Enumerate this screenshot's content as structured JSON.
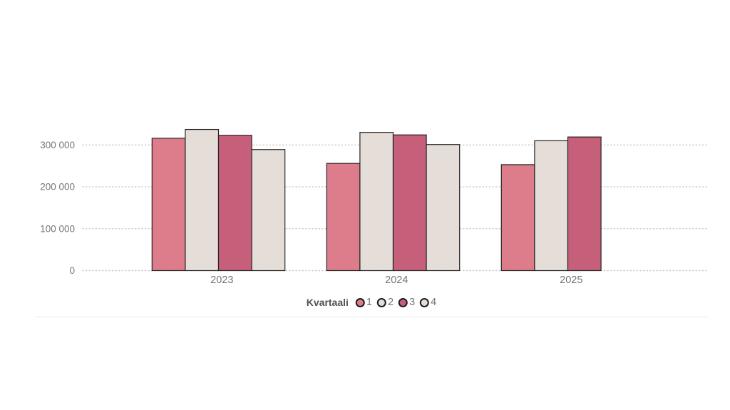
{
  "chart_data": {
    "type": "bar",
    "title": "",
    "xlabel": "",
    "ylabel": "",
    "categories": [
      "2023",
      "2024",
      "2025"
    ],
    "series": [
      {
        "name": "1",
        "color": "#dd7c8a",
        "values": [
          316000,
          256000,
          253000
        ]
      },
      {
        "name": "2",
        "color": "#e5ded8",
        "values": [
          337000,
          330000,
          310000
        ]
      },
      {
        "name": "3",
        "color": "#c6607a",
        "values": [
          323000,
          324000,
          319000
        ]
      },
      {
        "name": "4",
        "color": "#e5ded8",
        "values": [
          289000,
          301000,
          null
        ]
      }
    ],
    "ylim": [
      0,
      350000
    ],
    "y_ticks": [
      {
        "value": 0,
        "label": "0"
      },
      {
        "value": 100000,
        "label": "100 000"
      },
      {
        "value": 200000,
        "label": "200 000"
      },
      {
        "value": 300000,
        "label": "300 000"
      }
    ],
    "grid": "horizontal-dotted",
    "legend": {
      "title": "Kvartaali",
      "position": "bottom-center"
    }
  },
  "colors": {
    "background": "#ffffff",
    "bar_border": "#252423",
    "gridline": "#cbc8c5",
    "axis_tick_label": "#787572",
    "category_label": "#787572",
    "legend_title": "#555250",
    "legend_number": "#777472",
    "divider": "#ebebeb"
  }
}
